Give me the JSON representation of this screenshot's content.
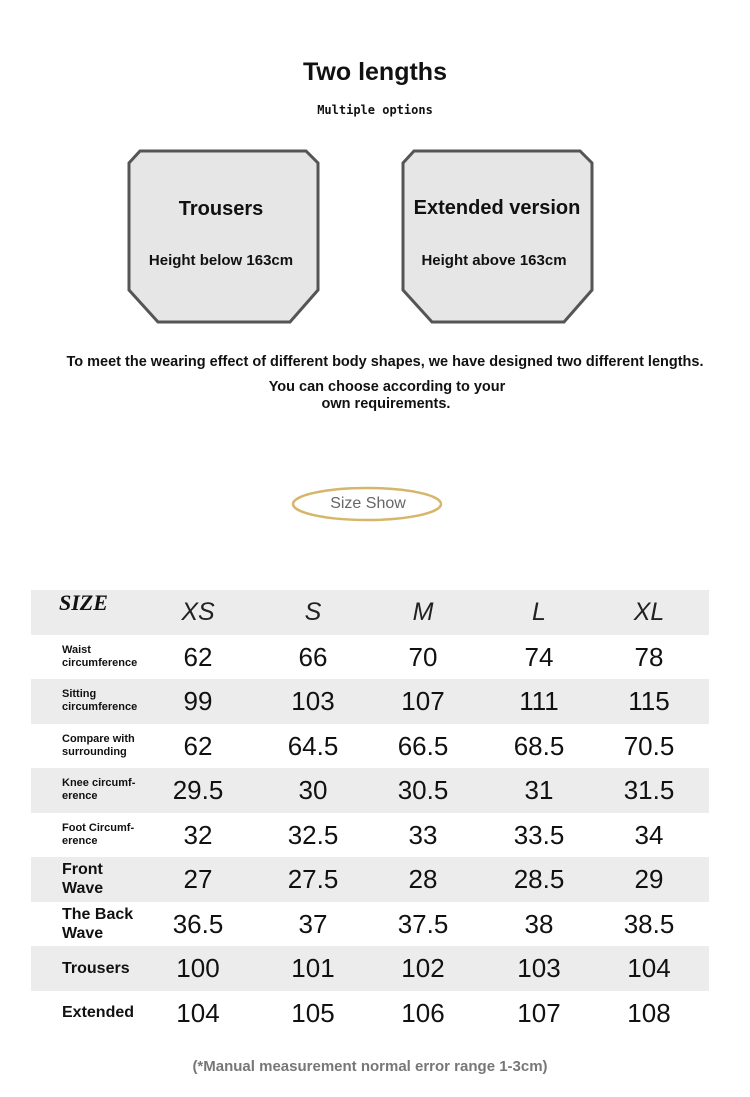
{
  "header": {
    "title": "Two lengths",
    "subtitle": "Multiple options"
  },
  "cards": [
    {
      "title": "Trousers",
      "note": "Height below 163cm"
    },
    {
      "title": "Extended version",
      "note": "Height above 163cm"
    }
  ],
  "description": [
    "To meet the wearing effect of different body shapes, we have designed two different lengths.",
    "You can choose according to your",
    "own requirements."
  ],
  "badge": "Size Show",
  "table": {
    "header": [
      "SIZE",
      "XS",
      "S",
      "M",
      "L",
      "XL"
    ],
    "rows": [
      {
        "label": [
          "Waist",
          "circumference"
        ],
        "values": [
          62,
          66,
          70,
          74,
          78
        ]
      },
      {
        "label": [
          "Sitting",
          "circumference"
        ],
        "values": [
          99,
          103,
          107,
          111,
          115
        ]
      },
      {
        "label": [
          "Compare with",
          "surrounding"
        ],
        "values": [
          62,
          64.5,
          66.5,
          68.5,
          70.5
        ]
      },
      {
        "label": [
          "Knee circumf-",
          "erence"
        ],
        "values": [
          29.5,
          30,
          30.5,
          31,
          31.5
        ]
      },
      {
        "label": [
          "Foot Circumf-",
          "erence"
        ],
        "values": [
          32,
          32.5,
          33,
          33.5,
          34
        ]
      },
      {
        "label": [
          "Front",
          "Wave"
        ],
        "values": [
          27,
          27.5,
          28,
          28.5,
          29
        ]
      },
      {
        "label": [
          "The Back",
          "Wave"
        ],
        "values": [
          36.5,
          37,
          37.5,
          38,
          38.5
        ]
      },
      {
        "label": [
          "Trousers"
        ],
        "values": [
          100,
          101,
          102,
          103,
          104
        ]
      },
      {
        "label": [
          "Extended"
        ],
        "values": [
          104,
          105,
          106,
          107,
          108
        ]
      }
    ]
  },
  "footnote": "(*Manual measurement normal error range 1-3cm)"
}
